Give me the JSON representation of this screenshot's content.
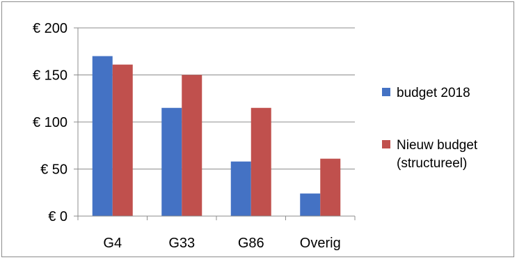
{
  "chart_data": {
    "type": "bar",
    "title": "",
    "xlabel": "",
    "ylabel": "",
    "categories": [
      "G4",
      "G33",
      "G86",
      "Overig"
    ],
    "series": [
      {
        "name": "budget 2018",
        "values": [
          170,
          115,
          58,
          24
        ],
        "color": "#4472C4"
      },
      {
        "name": "Nieuw budget (structureel)",
        "values": [
          161,
          150,
          115,
          61
        ],
        "color": "#C0504D"
      }
    ],
    "ylim": [
      0,
      200
    ],
    "yticks": [
      {
        "value": 0,
        "label": "€ 0"
      },
      {
        "value": 50,
        "label": "€ 50"
      },
      {
        "value": 100,
        "label": "€ 100"
      },
      {
        "value": 150,
        "label": "€ 150"
      },
      {
        "value": 200,
        "label": "€ 200"
      }
    ],
    "grid": true,
    "legend": {
      "position": "right",
      "entries": [
        {
          "lines": [
            "budget 2018"
          ]
        },
        {
          "lines": [
            "Nieuw budget",
            "(structureel)"
          ]
        }
      ]
    }
  }
}
